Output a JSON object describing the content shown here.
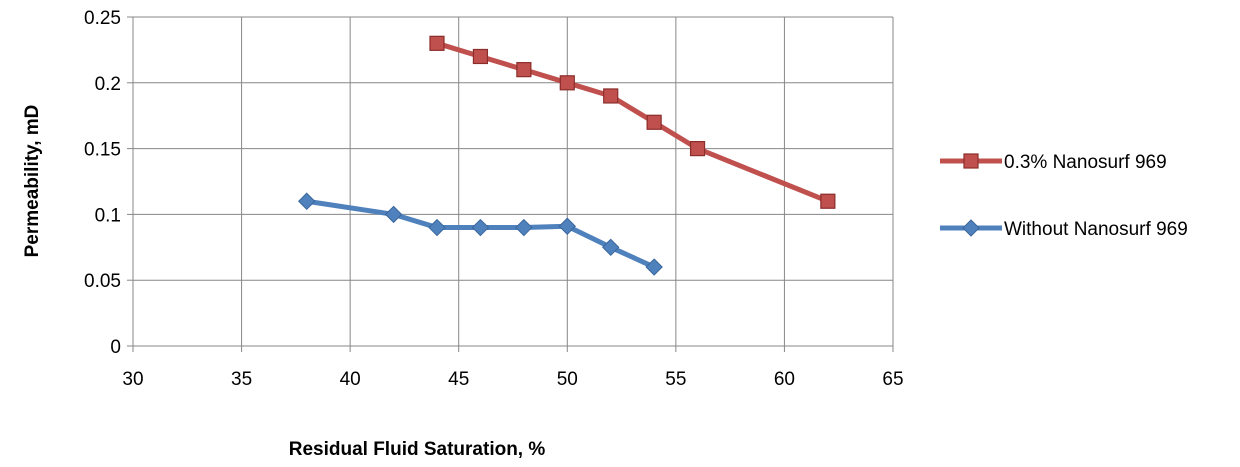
{
  "chart_data": {
    "type": "line",
    "xlabel": "Residual Fluid Saturation, %",
    "ylabel": "Permeability, mD",
    "xlim": [
      30,
      65
    ],
    "ylim": [
      0,
      0.25
    ],
    "x_ticks": [
      "30",
      "35",
      "40",
      "45",
      "50",
      "55",
      "60",
      "65"
    ],
    "y_ticks": [
      "0",
      "0.05",
      "0.1",
      "0.15",
      "0.2",
      "0.25"
    ],
    "grid": true,
    "legend_position": "right",
    "series": [
      {
        "name": "0.3% Nanosurf 969",
        "color": "#C0504D",
        "marker": "square",
        "x": [
          44,
          46,
          48,
          50,
          52,
          54,
          56,
          62
        ],
        "y": [
          0.23,
          0.22,
          0.21,
          0.2,
          0.19,
          0.17,
          0.15,
          0.11
        ]
      },
      {
        "name": "Without Nanosurf 969",
        "color": "#4F81BD",
        "marker": "diamond",
        "x": [
          38,
          42,
          44,
          46,
          48,
          50,
          52,
          54
        ],
        "y": [
          0.11,
          0.1,
          0.09,
          0.09,
          0.09,
          0.091,
          0.075,
          0.06
        ]
      }
    ]
  }
}
